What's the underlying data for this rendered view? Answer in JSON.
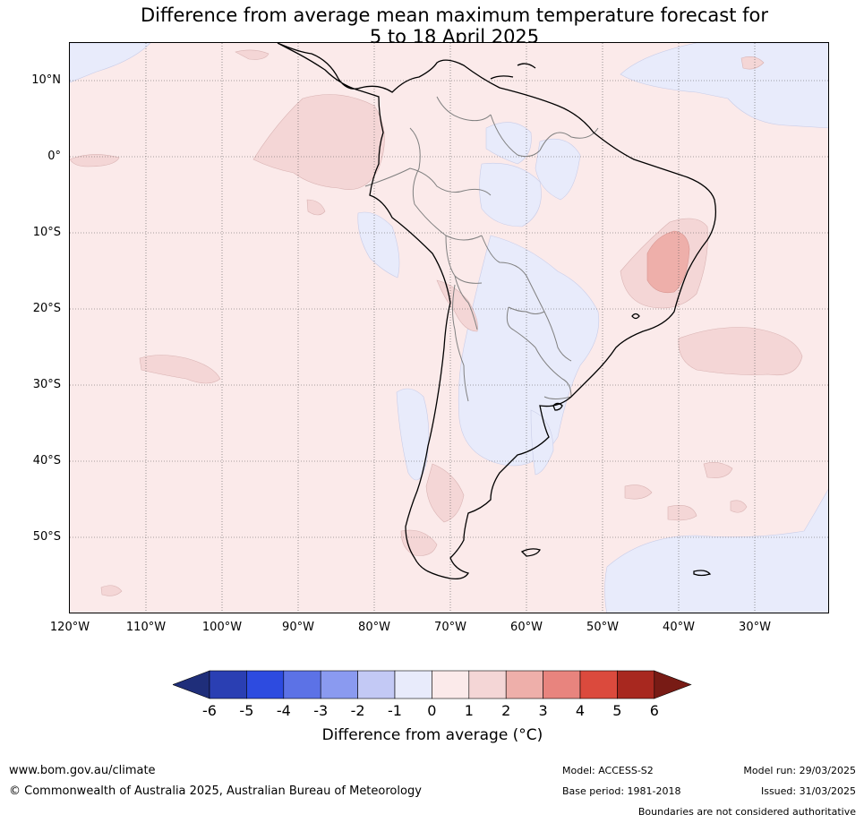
{
  "title": {
    "line1": "Difference from average mean maximum temperature forecast for",
    "line2": "5 to 18 April 2025"
  },
  "map": {
    "lat_labels": [
      "10°N",
      "0°",
      "10°S",
      "20°S",
      "30°S",
      "40°S",
      "50°S"
    ],
    "lon_labels": [
      "120°W",
      "110°W",
      "100°W",
      "90°W",
      "80°W",
      "70°W",
      "60°W",
      "50°W",
      "40°W",
      "30°W"
    ],
    "background_color": "#fbeaea"
  },
  "colorbar": {
    "ticks": [
      "-6",
      "-5",
      "-4",
      "-3",
      "-2",
      "-1",
      "0",
      "1",
      "2",
      "3",
      "4",
      "5",
      "6"
    ],
    "colors": [
      "#1f2e7a",
      "#2a3fb3",
      "#2d4be0",
      "#5c72e6",
      "#8a9af0",
      "#c3c9f5",
      "#e8ebfb",
      "#fbeaea",
      "#f4d6d6",
      "#eeafaa",
      "#e8847e",
      "#db4a3d",
      "#a8281f",
      "#781b15"
    ],
    "label": "Difference from average (°C)"
  },
  "footer": {
    "website": "www.bom.gov.au/climate",
    "copyright": "© Commonwealth of Australia 2025, Australian Bureau of Meteorology",
    "model": "Model: ACCESS-S2",
    "base_period": "Base period: 1981-2018",
    "model_run": "Model run: 29/03/2025",
    "issued": "Issued: 31/03/2025",
    "disclaimer": "Boundaries are not considered authoritative"
  }
}
